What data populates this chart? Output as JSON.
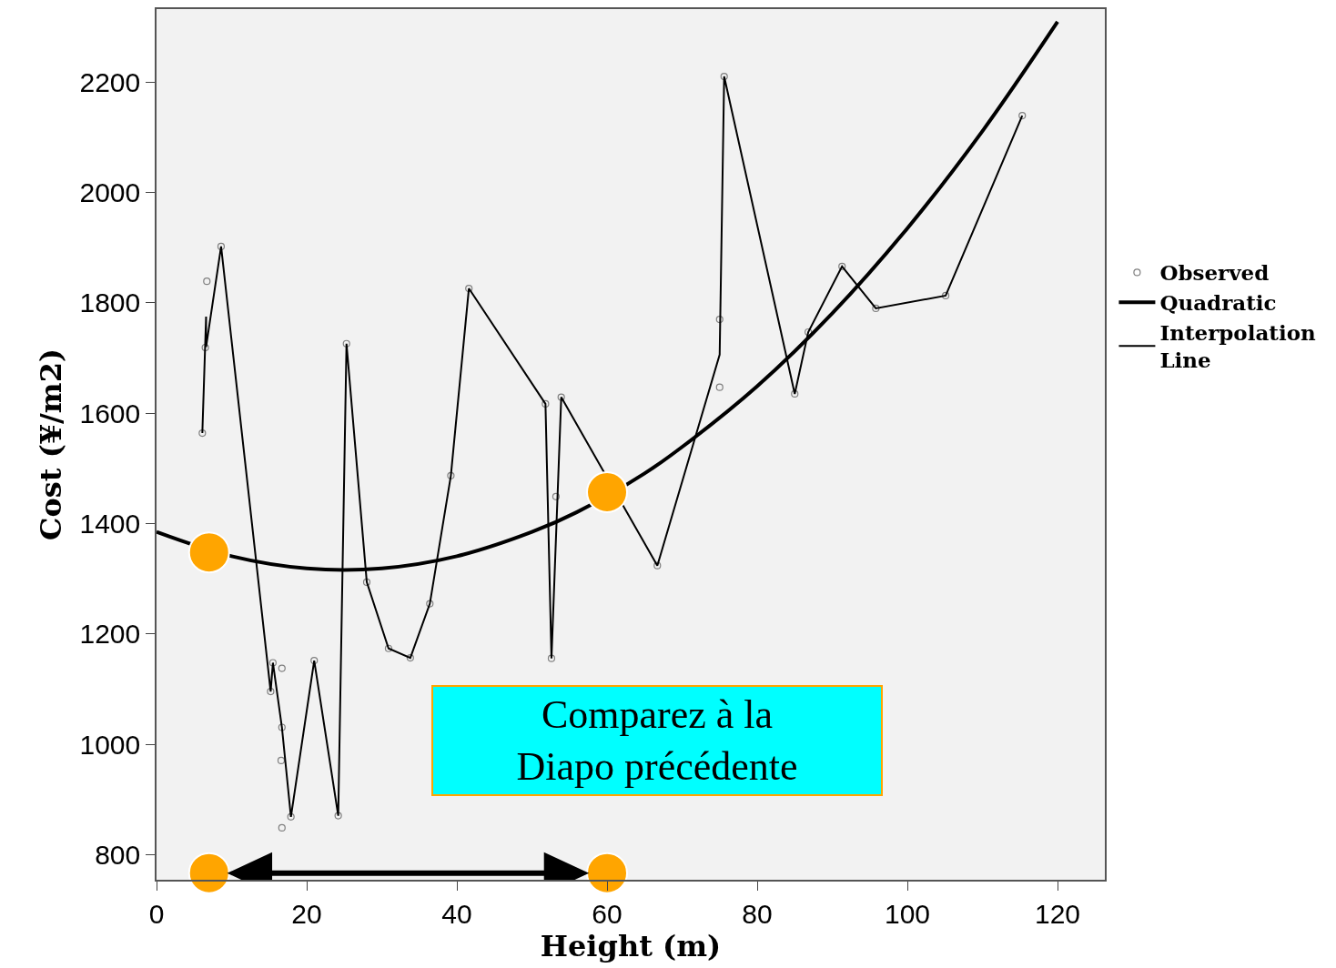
{
  "chart_data": {
    "type": "scatter",
    "xlabel": "Height (m)",
    "ylabel": "Cost (¥/m2)",
    "xlim": [
      0,
      126.3
    ],
    "ylim": [
      755,
      2332
    ],
    "xticks": [
      0,
      20,
      40,
      60,
      80,
      100,
      120
    ],
    "yticks": [
      800,
      1000,
      1200,
      1400,
      1600,
      1800,
      2000,
      2200
    ],
    "grid": false,
    "legend": "right",
    "series": [
      {
        "name": "Observed",
        "marker": "circle",
        "color": "#808080",
        "x": [
          6.1,
          6.5,
          6.7,
          8.6,
          15.2,
          15.5,
          16.7,
          16.7,
          16.6,
          17.9,
          16.7,
          21.0,
          24.2,
          25.3,
          28.0,
          30.9,
          33.8,
          36.4,
          39.2,
          41.6,
          51.8,
          52.6,
          53.2,
          53.9,
          66.7,
          75.0,
          75.0,
          75.6,
          85.0,
          86.8,
          91.3,
          95.8,
          105.1,
          115.3
        ],
        "values": [
          1564,
          1719,
          1839,
          1902,
          1096,
          1148,
          1138,
          1031,
          971,
          869,
          849,
          1152,
          871,
          1726,
          1294,
          1174,
          1157,
          1255,
          1487,
          1826,
          1617,
          1156,
          1449,
          1629,
          1324,
          1770,
          1647,
          2210,
          1635,
          1747,
          1866,
          1790,
          1813,
          2139
        ]
      },
      {
        "name": "Quadratic",
        "type": "line",
        "marker": "none",
        "color": "#000000",
        "x": [
          0,
          10,
          20,
          30,
          40,
          50,
          56,
          65,
          70,
          80,
          90,
          100,
          110,
          120
        ],
        "values": [
          1385,
          1341,
          1319,
          1319,
          1341,
          1385,
          1421,
          1491,
          1539,
          1649,
          1781,
          1935,
          2111,
          2309
        ]
      },
      {
        "name": "Interpolation Line",
        "type": "line",
        "marker": "none",
        "color": "#000000",
        "x": [
          6.1,
          6.6,
          6.6,
          8.6,
          15.2,
          15.5,
          16.7,
          17.9,
          21.0,
          24.2,
          25.3,
          28.0,
          30.9,
          33.8,
          36.4,
          39.2,
          41.6,
          51.8,
          52.6,
          53.9,
          66.7,
          75.0,
          75.6,
          85.0,
          86.8,
          91.3,
          95.8,
          105.1,
          115.3
        ],
        "values": [
          1564,
          1775,
          1720,
          1902,
          1096,
          1148,
          1031,
          869,
          1152,
          871,
          1726,
          1294,
          1174,
          1157,
          1255,
          1487,
          1826,
          1617,
          1156,
          1629,
          1324,
          1706,
          2210,
          1635,
          1747,
          1866,
          1790,
          1813,
          2139
        ]
      },
      {
        "marker": "circle",
        "color": "#ffa500",
        "x": [
          7.0,
          60.0,
          7.0,
          60.0
        ],
        "values": [
          1348,
          1457,
          767,
          767
        ]
      }
    ],
    "annotations": [
      "Comparez à la\nDiapo précédente"
    ]
  }
}
